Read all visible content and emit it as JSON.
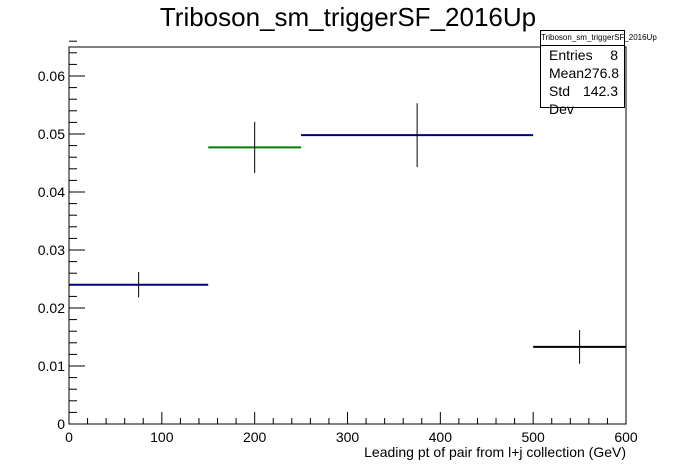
{
  "chart_data": {
    "type": "histogram",
    "title": "Triboson_sm_triggerSF_2016Up",
    "xlabel": "Leading pt of pair from l+j collection (GeV)",
    "ylabel": "",
    "xlim": [
      0,
      600
    ],
    "ylim": [
      0,
      0.065
    ],
    "grid": false,
    "x_ticks": [
      0,
      100,
      200,
      300,
      400,
      500,
      600
    ],
    "y_ticks": [
      0,
      0.01,
      0.02,
      0.03,
      0.04,
      0.05,
      0.06
    ],
    "bins": [
      {
        "low": 0,
        "high": 150,
        "center": 75,
        "value": 0.024,
        "error": 0.0022,
        "color": "#000080"
      },
      {
        "low": 150,
        "high": 250,
        "center": 200,
        "value": 0.0477,
        "error": 0.0044,
        "color": "#008000"
      },
      {
        "low": 250,
        "high": 500,
        "center": 375,
        "value": 0.0498,
        "error": 0.0055,
        "color": "#000080"
      },
      {
        "low": 500,
        "high": 600,
        "center": 550,
        "value": 0.0133,
        "error": 0.0029,
        "color": "#000000"
      }
    ],
    "stats": {
      "name": "Triboson_sm_triggerSF_2016Up",
      "rows": [
        {
          "label": "Entries",
          "value": "8"
        },
        {
          "label": "Mean",
          "value": "276.8"
        },
        {
          "label": "Std Dev",
          "value": "142.3"
        }
      ]
    }
  }
}
